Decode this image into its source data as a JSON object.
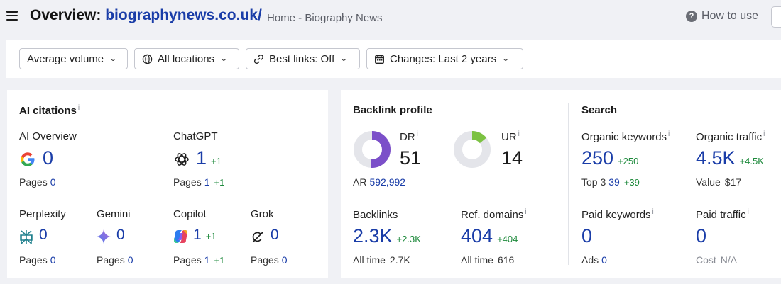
{
  "header": {
    "title_prefix": "Overview:",
    "domain": "biographynews.co.uk/",
    "breadcrumb": "Home - Biography News",
    "how_to_use": "How to use"
  },
  "filters": [
    {
      "label": "Average volume",
      "icon": "none"
    },
    {
      "label": "All locations",
      "icon": "globe-icon"
    },
    {
      "label": "Best links: Off",
      "icon": "link-icon"
    },
    {
      "label": "Changes: Last 2 years",
      "icon": "calendar-icon"
    }
  ],
  "ai_citations": {
    "title": "AI citations",
    "info": "i",
    "ai_overview": {
      "label": "AI Overview",
      "value": "0",
      "pages_label": "Pages",
      "pages": "0"
    },
    "chatgpt": {
      "label": "ChatGPT",
      "value": "1",
      "delta": "+1",
      "pages_label": "Pages",
      "pages": "1",
      "pages_delta": "+1"
    },
    "perplexity": {
      "label": "Perplexity",
      "value": "0",
      "pages_label": "Pages",
      "pages": "0"
    },
    "gemini": {
      "label": "Gemini",
      "value": "0",
      "pages_label": "Pages",
      "pages": "0"
    },
    "copilot": {
      "label": "Copilot",
      "value": "1",
      "delta": "+1",
      "pages_label": "Pages",
      "pages": "1",
      "pages_delta": "+1"
    },
    "grok": {
      "label": "Grok",
      "value": "0",
      "pages_label": "Pages",
      "pages": "0"
    }
  },
  "backlink_profile": {
    "title": "Backlink profile",
    "dr": {
      "label": "DR",
      "info": "i",
      "value": "51",
      "ratio": 0.51,
      "color": "#7b4fc9"
    },
    "ur": {
      "label": "UR",
      "info": "i",
      "value": "14",
      "ratio": 0.14,
      "color": "#7cc242"
    },
    "ar_label": "AR",
    "ar_value": "592,992",
    "backlinks": {
      "label": "Backlinks",
      "info": "i",
      "value": "2.3K",
      "delta": "+2.3K",
      "sub_label": "All time",
      "sub_value": "2.7K"
    },
    "ref_domains": {
      "label": "Ref. domains",
      "info": "i",
      "value": "404",
      "delta": "+404",
      "sub_label": "All time",
      "sub_value": "616"
    }
  },
  "search": {
    "title": "Search",
    "organic_keywords": {
      "label": "Organic keywords",
      "info": "i",
      "value": "250",
      "delta": "+250",
      "sub_label": "Top 3",
      "sub_value": "39",
      "sub_delta": "+39"
    },
    "organic_traffic": {
      "label": "Organic traffic",
      "info": "i",
      "value": "4.5K",
      "delta": "+4.5K",
      "sub_label": "Value",
      "sub_value": "$17"
    },
    "paid_keywords": {
      "label": "Paid keywords",
      "info": "i",
      "value": "0",
      "sub_label": "Ads",
      "sub_value": "0"
    },
    "paid_traffic": {
      "label": "Paid traffic",
      "info": "i",
      "value": "0",
      "sub_label": "Cost",
      "sub_value": "N/A"
    }
  }
}
